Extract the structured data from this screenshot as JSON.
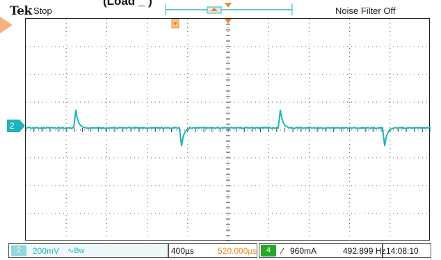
{
  "header": {
    "brand": "Tek",
    "run_state": "Stop",
    "noise_filter": "Noise Filter Off",
    "clipped_title": "(Load _ )"
  },
  "channel": {
    "marker": "2",
    "trace_color": "#1fb3bb"
  },
  "status_bar": {
    "channel_badge": "2",
    "scale": "200mV",
    "bandwidth_icon": "∿Bw",
    "time_div": "400µs",
    "time_position": "520.000µs",
    "trigger_source": "4",
    "trigger_slope_icon": "∕",
    "trigger_level": "960mA",
    "frequency": "492.899 Hz",
    "clock": "14:08:10"
  },
  "colors": {
    "trace": "#1fb3bb",
    "trigger_marker": "#f08a1a",
    "trigger_badge": "#27a829"
  }
}
